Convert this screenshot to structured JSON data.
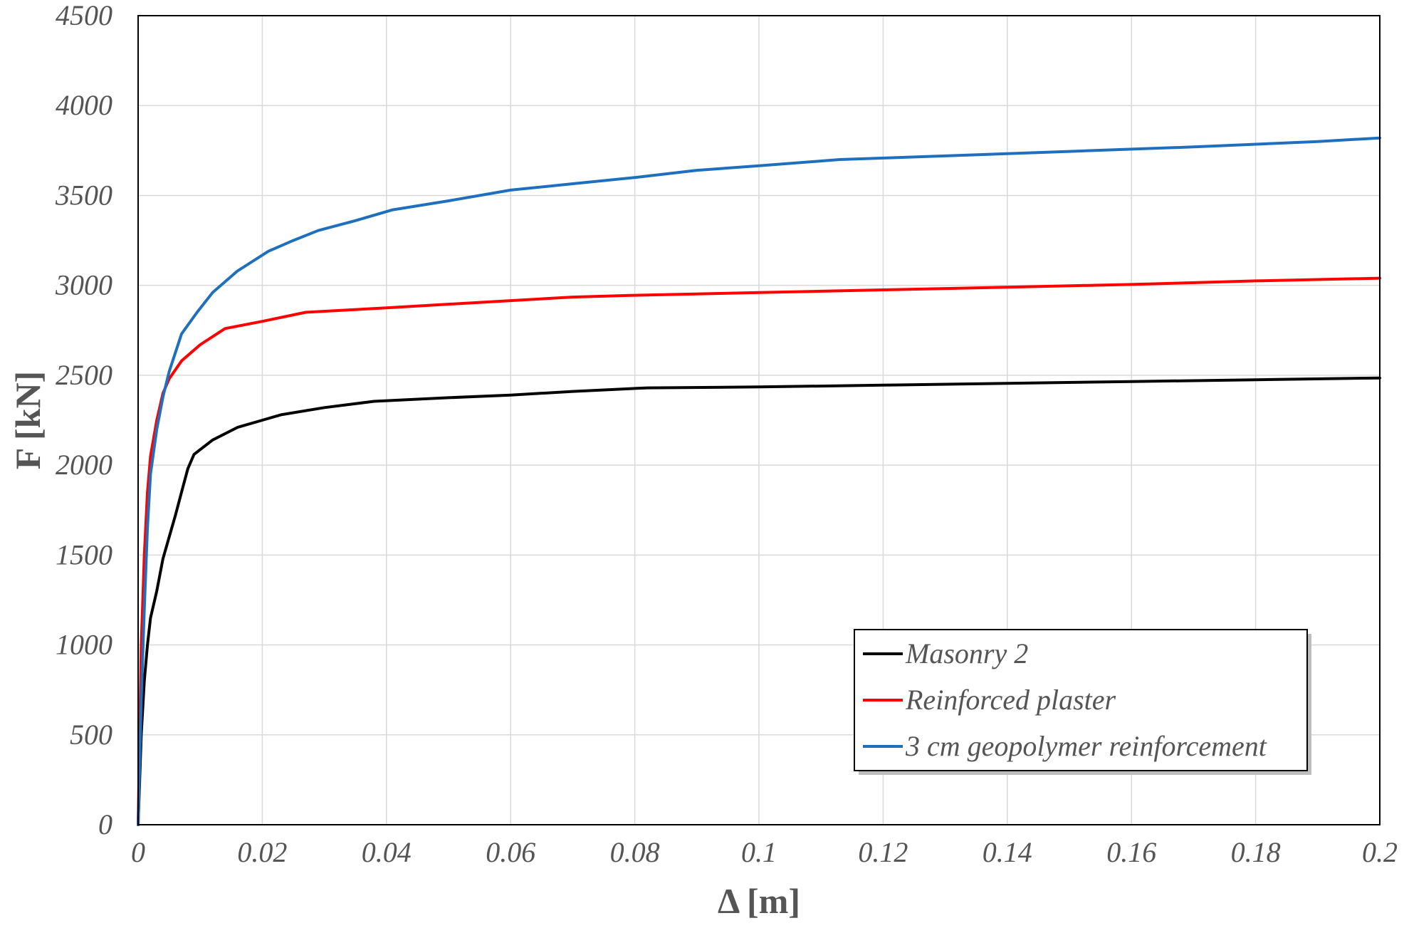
{
  "chart_data": {
    "type": "line",
    "title": "",
    "xlabel": "Δ [m]",
    "ylabel": "F [kN]",
    "xlim": [
      0,
      0.2
    ],
    "ylim": [
      0,
      4500
    ],
    "xticks": [
      0,
      0.02,
      0.04,
      0.06,
      0.08,
      0.1,
      0.12,
      0.14,
      0.16,
      0.18,
      0.2
    ],
    "xtick_labels": [
      "0",
      "0.02",
      "0.04",
      "0.06",
      "0.08",
      "0.1",
      "0.12",
      "0.14",
      "0.16",
      "0.18",
      "0.2"
    ],
    "yticks": [
      0,
      500,
      1000,
      1500,
      2000,
      2500,
      3000,
      3500,
      4000,
      4500
    ],
    "ytick_labels": [
      "0",
      "500",
      "1000",
      "1500",
      "2000",
      "2500",
      "3000",
      "3500",
      "4000",
      "4500"
    ],
    "grid": true,
    "legend_position": "bottom-right",
    "series": [
      {
        "name": "Masonry 2",
        "color": "#000000",
        "points": [
          [
            0,
            0
          ],
          [
            0.0005,
            500
          ],
          [
            0.001,
            800
          ],
          [
            0.0015,
            1000
          ],
          [
            0.002,
            1150
          ],
          [
            0.003,
            1300
          ],
          [
            0.004,
            1480
          ],
          [
            0.005,
            1600
          ],
          [
            0.006,
            1720
          ],
          [
            0.007,
            1850
          ],
          [
            0.008,
            1980
          ],
          [
            0.009,
            2060
          ],
          [
            0.012,
            2140
          ],
          [
            0.016,
            2210
          ],
          [
            0.02,
            2250
          ],
          [
            0.023,
            2280
          ],
          [
            0.03,
            2320
          ],
          [
            0.038,
            2355
          ],
          [
            0.05,
            2375
          ],
          [
            0.06,
            2390
          ],
          [
            0.07,
            2410
          ],
          [
            0.082,
            2430
          ],
          [
            0.1,
            2435
          ],
          [
            0.12,
            2445
          ],
          [
            0.14,
            2455
          ],
          [
            0.16,
            2465
          ],
          [
            0.18,
            2475
          ],
          [
            0.2,
            2485
          ]
        ]
      },
      {
        "name": "Reinforced plaster",
        "color": "#ff0000",
        "points": [
          [
            0,
            0
          ],
          [
            0.0005,
            1000
          ],
          [
            0.001,
            1500
          ],
          [
            0.0015,
            1850
          ],
          [
            0.002,
            2050
          ],
          [
            0.003,
            2250
          ],
          [
            0.004,
            2400
          ],
          [
            0.005,
            2480
          ],
          [
            0.007,
            2580
          ],
          [
            0.01,
            2670
          ],
          [
            0.014,
            2760
          ],
          [
            0.02,
            2800
          ],
          [
            0.027,
            2850
          ],
          [
            0.04,
            2875
          ],
          [
            0.06,
            2915
          ],
          [
            0.07,
            2935
          ],
          [
            0.08,
            2945
          ],
          [
            0.1,
            2960
          ],
          [
            0.12,
            2975
          ],
          [
            0.14,
            2990
          ],
          [
            0.16,
            3005
          ],
          [
            0.18,
            3025
          ],
          [
            0.2,
            3040
          ]
        ]
      },
      {
        "name": "3 cm geopolymer reinforcement",
        "color": "#1f6fbf",
        "points": [
          [
            0,
            0
          ],
          [
            0.0005,
            700
          ],
          [
            0.001,
            1200
          ],
          [
            0.0015,
            1650
          ],
          [
            0.002,
            1950
          ],
          [
            0.003,
            2200
          ],
          [
            0.004,
            2380
          ],
          [
            0.005,
            2520
          ],
          [
            0.007,
            2730
          ],
          [
            0.0095,
            2850
          ],
          [
            0.012,
            2960
          ],
          [
            0.016,
            3080
          ],
          [
            0.021,
            3190
          ],
          [
            0.025,
            3250
          ],
          [
            0.029,
            3305
          ],
          [
            0.035,
            3360
          ],
          [
            0.041,
            3420
          ],
          [
            0.05,
            3470
          ],
          [
            0.06,
            3530
          ],
          [
            0.07,
            3565
          ],
          [
            0.08,
            3600
          ],
          [
            0.09,
            3640
          ],
          [
            0.1,
            3665
          ],
          [
            0.113,
            3700
          ],
          [
            0.13,
            3720
          ],
          [
            0.15,
            3745
          ],
          [
            0.17,
            3770
          ],
          [
            0.19,
            3800
          ],
          [
            0.2,
            3820
          ]
        ]
      }
    ]
  }
}
